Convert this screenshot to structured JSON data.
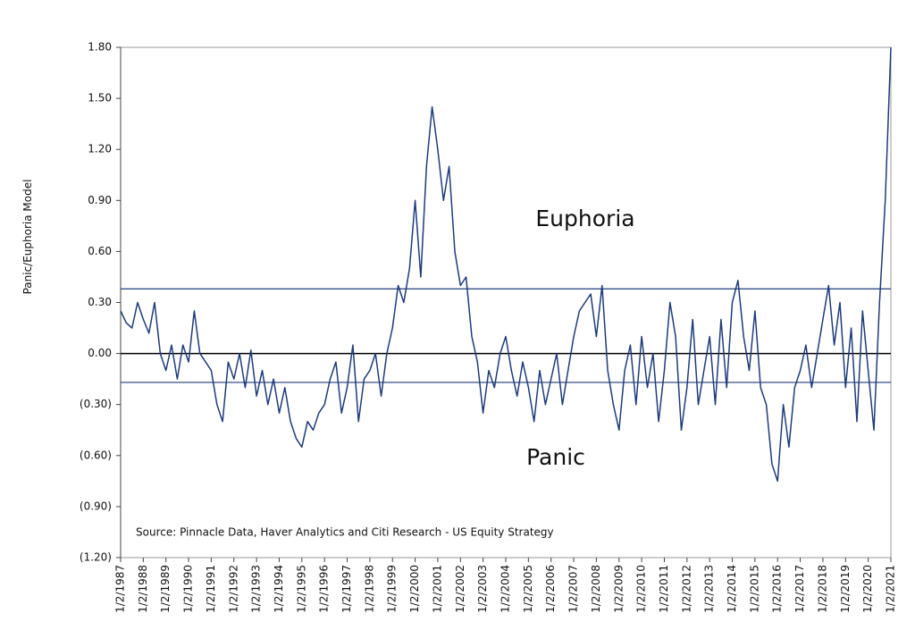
{
  "chart_data": {
    "type": "line",
    "y_label": "Panic/Euphoria Model",
    "annotations": [
      "Euphoria",
      "Panic",
      "Source:  Pinnacle Data, Haver Analytics and Citi Research - US Equity Strategy"
    ],
    "xlim": [
      1987,
      2021
    ],
    "xticks": [
      {
        "value": 1987,
        "label": "1/2/1987"
      },
      {
        "value": 1988,
        "label": "1/2/1988"
      },
      {
        "value": 1989,
        "label": "1/2/1989"
      },
      {
        "value": 1990,
        "label": "1/2/1990"
      },
      {
        "value": 1991,
        "label": "1/2/1991"
      },
      {
        "value": 1992,
        "label": "1/2/1992"
      },
      {
        "value": 1993,
        "label": "1/2/1993"
      },
      {
        "value": 1994,
        "label": "1/2/1994"
      },
      {
        "value": 1995,
        "label": "1/2/1995"
      },
      {
        "value": 1996,
        "label": "1/2/1996"
      },
      {
        "value": 1997,
        "label": "1/2/1997"
      },
      {
        "value": 1998,
        "label": "1/2/1998"
      },
      {
        "value": 1999,
        "label": "1/2/1999"
      },
      {
        "value": 2000,
        "label": "1/2/2000"
      },
      {
        "value": 2001,
        "label": "1/2/2001"
      },
      {
        "value": 2002,
        "label": "1/2/2002"
      },
      {
        "value": 2003,
        "label": "1/2/2003"
      },
      {
        "value": 2004,
        "label": "1/2/2004"
      },
      {
        "value": 2005,
        "label": "1/2/2005"
      },
      {
        "value": 2006,
        "label": "1/2/2006"
      },
      {
        "value": 2007,
        "label": "1/2/2007"
      },
      {
        "value": 2008,
        "label": "1/2/2008"
      },
      {
        "value": 2009,
        "label": "1/2/2009"
      },
      {
        "value": 2010,
        "label": "1/2/2010"
      },
      {
        "value": 2011,
        "label": "1/2/2011"
      },
      {
        "value": 2012,
        "label": "1/2/2012"
      },
      {
        "value": 2013,
        "label": "1/2/2013"
      },
      {
        "value": 2014,
        "label": "1/2/2014"
      },
      {
        "value": 2015,
        "label": "1/2/2015"
      },
      {
        "value": 2016,
        "label": "1/2/2016"
      },
      {
        "value": 2017,
        "label": "1/2/2017"
      },
      {
        "value": 2018,
        "label": "1/2/2018"
      },
      {
        "value": 2019,
        "label": "1/2/2019"
      },
      {
        "value": 2020,
        "label": "1/2/2020"
      },
      {
        "value": 2021,
        "label": "1/2/2021"
      }
    ],
    "ylim": [
      -1.2,
      1.8
    ],
    "yticks": [
      {
        "value": 1.8,
        "label": "1.80"
      },
      {
        "value": 1.5,
        "label": "1.50"
      },
      {
        "value": 1.2,
        "label": "1.20"
      },
      {
        "value": 0.9,
        "label": "0.90"
      },
      {
        "value": 0.6,
        "label": "0.60"
      },
      {
        "value": 0.3,
        "label": "0.30"
      },
      {
        "value": 0,
        "label": "0.00"
      },
      {
        "value": -0.3,
        "label": "(0.30)"
      },
      {
        "value": -0.6,
        "label": "(0.60)"
      },
      {
        "value": -0.9,
        "label": "(0.90)"
      },
      {
        "value": -1.2,
        "label": "(1.20)"
      }
    ],
    "reference_lines": [
      0.38,
      0,
      -0.17
    ],
    "reference_colors": [
      "#1f3b7a",
      "#000000",
      "#1f3b7a"
    ],
    "x": [
      1987,
      1987.25,
      1987.5,
      1987.75,
      1988,
      1988.25,
      1988.5,
      1988.75,
      1989,
      1989.25,
      1989.5,
      1989.75,
      1990,
      1990.25,
      1990.5,
      1990.75,
      1991,
      1991.25,
      1991.5,
      1991.75,
      1992,
      1992.25,
      1992.5,
      1992.75,
      1993,
      1993.25,
      1993.5,
      1993.75,
      1994,
      1994.25,
      1994.5,
      1994.75,
      1995,
      1995.25,
      1995.5,
      1995.75,
      1996,
      1996.25,
      1996.5,
      1996.75,
      1997,
      1997.25,
      1997.5,
      1997.75,
      1998,
      1998.25,
      1998.5,
      1998.75,
      1999,
      1999.25,
      1999.5,
      1999.75,
      2000,
      2000.25,
      2000.5,
      2000.75,
      2001,
      2001.25,
      2001.5,
      2001.75,
      2002,
      2002.25,
      2002.5,
      2002.75,
      2003,
      2003.25,
      2003.5,
      2003.75,
      2004,
      2004.25,
      2004.5,
      2004.75,
      2005,
      2005.25,
      2005.5,
      2005.75,
      2006,
      2006.25,
      2006.5,
      2006.75,
      2007,
      2007.25,
      2007.5,
      2007.75,
      2008,
      2008.25,
      2008.5,
      2008.75,
      2009,
      2009.25,
      2009.5,
      2009.75,
      2010,
      2010.25,
      2010.5,
      2010.75,
      2011,
      2011.25,
      2011.5,
      2011.75,
      2012,
      2012.25,
      2012.5,
      2012.75,
      2013,
      2013.25,
      2013.5,
      2013.75,
      2014,
      2014.25,
      2014.5,
      2014.75,
      2015,
      2015.25,
      2015.5,
      2015.75,
      2016,
      2016.25,
      2016.5,
      2016.75,
      2017,
      2017.25,
      2017.5,
      2017.75,
      2018,
      2018.25,
      2018.5,
      2018.75,
      2019,
      2019.25,
      2019.5,
      2019.75,
      2020,
      2020.25,
      2020.5,
      2020.75,
      2021
    ],
    "series": [
      {
        "color": "#1f3b7a",
        "values": [
          0.25,
          0.18,
          0.15,
          0.3,
          0.2,
          0.12,
          0.3,
          0.0,
          -0.1,
          0.05,
          -0.15,
          0.05,
          -0.05,
          0.25,
          0.0,
          -0.05,
          -0.1,
          -0.3,
          -0.4,
          -0.05,
          -0.15,
          0.0,
          -0.2,
          0.02,
          -0.25,
          -0.1,
          -0.3,
          -0.15,
          -0.35,
          -0.2,
          -0.4,
          -0.5,
          -0.55,
          -0.4,
          -0.45,
          -0.35,
          -0.3,
          -0.15,
          -0.05,
          -0.35,
          -0.2,
          0.05,
          -0.4,
          -0.15,
          -0.1,
          0.0,
          -0.25,
          0.0,
          0.15,
          0.4,
          0.3,
          0.5,
          0.9,
          0.45,
          1.1,
          1.45,
          1.2,
          0.9,
          1.1,
          0.6,
          0.4,
          0.45,
          0.1,
          -0.05,
          -0.35,
          -0.1,
          -0.2,
          0.0,
          0.1,
          -0.1,
          -0.25,
          -0.05,
          -0.2,
          -0.4,
          -0.1,
          -0.3,
          -0.15,
          0.0,
          -0.3,
          -0.1,
          0.1,
          0.25,
          0.3,
          0.35,
          0.1,
          0.4,
          -0.1,
          -0.3,
          -0.45,
          -0.1,
          0.05,
          -0.3,
          0.1,
          -0.2,
          0.0,
          -0.4,
          -0.1,
          0.3,
          0.1,
          -0.45,
          -0.2,
          0.2,
          -0.3,
          -0.1,
          0.1,
          -0.3,
          0.2,
          -0.2,
          0.3,
          0.43,
          0.1,
          -0.1,
          0.25,
          -0.2,
          -0.3,
          -0.65,
          -0.75,
          -0.3,
          -0.55,
          -0.2,
          -0.1,
          0.05,
          -0.2,
          0.0,
          0.2,
          0.4,
          0.05,
          0.3,
          -0.2,
          0.15,
          -0.4,
          0.25,
          -0.1,
          -0.45,
          0.3,
          0.9,
          1.8
        ]
      }
    ]
  }
}
